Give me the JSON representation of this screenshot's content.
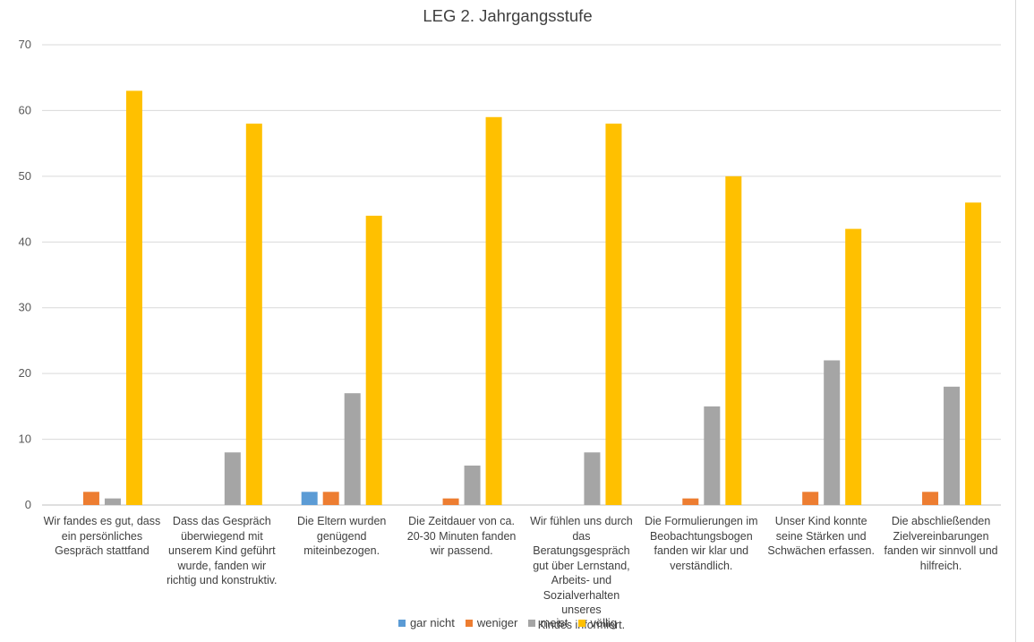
{
  "chart_data": {
    "type": "bar",
    "title": "LEG 2. Jahrgangsstufe",
    "xlabel": "",
    "ylabel": "",
    "ylim": [
      0,
      70
    ],
    "yticks": [
      0,
      10,
      20,
      30,
      40,
      50,
      60,
      70
    ],
    "grid": true,
    "legend_position": "bottom",
    "categories": [
      "Wir fandes es gut, dass ein persönliches Gespräch stattfand",
      "Dass das Gespräch überwiegend mit unserem Kind geführt wurde, fanden wir richtig und konstruktiv.",
      "Die Eltern wurden genügend miteinbezogen.",
      "Die Zeitdauer von ca. 20-30 Minuten fanden wir passend.",
      "Wir fühlen uns durch das Beratungsgespräch gut über Lernstand, Arbeits- und Sozialverhalten unseres Kindes informiert.",
      "Die Formulierungen im Beobachtungsbogen fanden wir klar und verständlich.",
      "Unser Kind konnte seine Stärken und Schwächen erfassen.",
      "Die abschließenden Zielvereinbarungen fanden wir sinnvoll und hilfreich."
    ],
    "category_lines": [
      [
        "Wir fandes es gut, dass",
        "ein persönliches",
        "Gespräch stattfand"
      ],
      [
        "Dass das Gespräch",
        "überwiegend mit",
        "unserem Kind geführt",
        "wurde, fanden wir",
        "richtig und konstruktiv."
      ],
      [
        "Die Eltern wurden",
        "genügend",
        "miteinbezogen."
      ],
      [
        "Die Zeitdauer von ca.",
        "20-30 Minuten fanden",
        "wir passend."
      ],
      [
        "Wir fühlen uns durch",
        "das Beratungsgespräch",
        "gut über Lernstand,",
        "Arbeits- und",
        "Sozialverhalten unseres",
        "Kindes informiert."
      ],
      [
        "Die Formulierungen im",
        "Beobachtungsbogen",
        "fanden wir klar und",
        "verständlich."
      ],
      [
        "Unser Kind konnte",
        "seine Stärken und",
        "Schwächen erfassen."
      ],
      [
        "Die abschließenden",
        "Zielvereinbarungen",
        "fanden wir sinnvoll und",
        "hilfreich."
      ]
    ],
    "series": [
      {
        "name": "gar nicht",
        "color": "#5b9bd5",
        "values": [
          0,
          0,
          2,
          0,
          0,
          0,
          0,
          0
        ]
      },
      {
        "name": "weniger",
        "color": "#ed7d31",
        "values": [
          2,
          0,
          2,
          1,
          0,
          1,
          2,
          2
        ]
      },
      {
        "name": "meist",
        "color": "#a5a5a5",
        "values": [
          1,
          8,
          17,
          6,
          8,
          15,
          22,
          18
        ]
      },
      {
        "name": "völlig",
        "color": "#ffc000",
        "values": [
          63,
          58,
          44,
          59,
          58,
          50,
          42,
          46
        ]
      }
    ]
  }
}
